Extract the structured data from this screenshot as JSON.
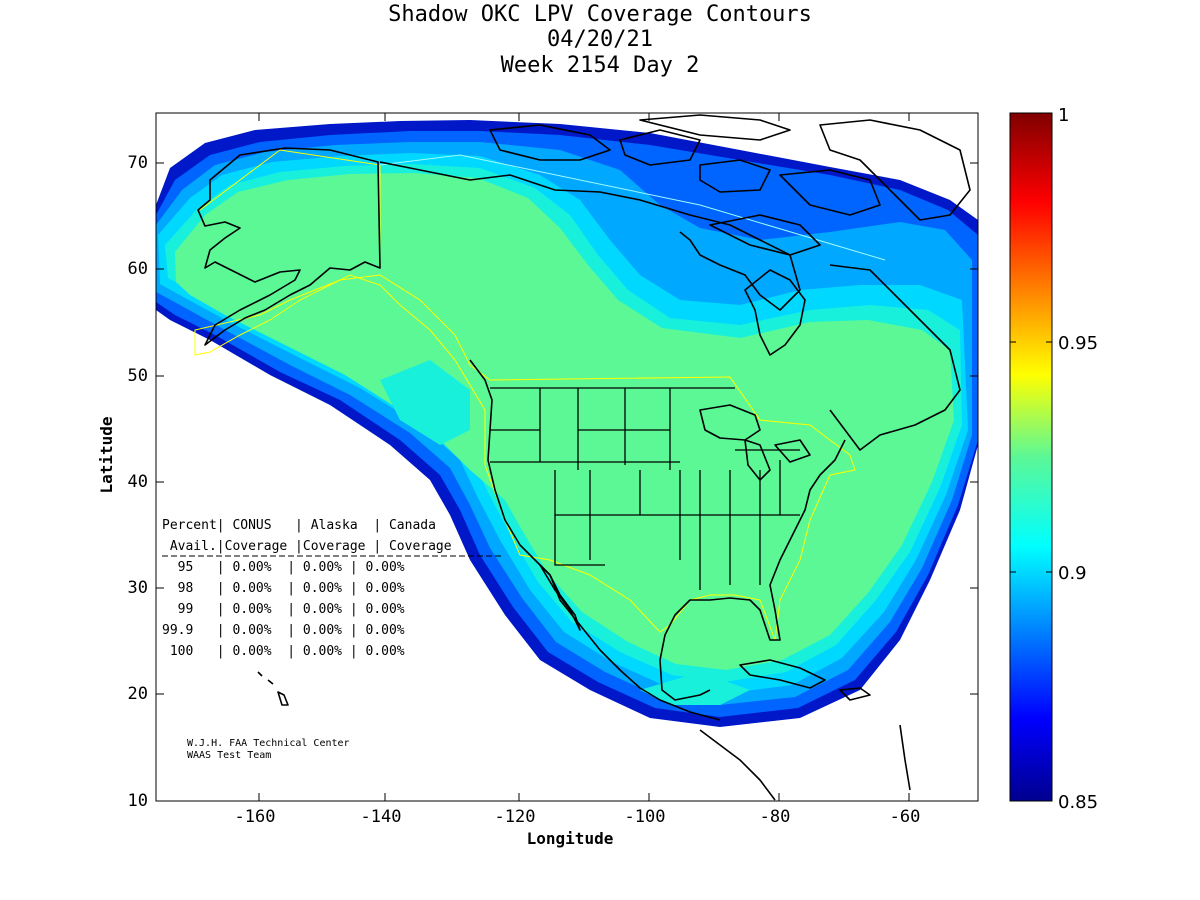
{
  "title": {
    "line1": "Shadow OKC LPV Coverage Contours",
    "line2": "04/20/21",
    "line3": "Week 2154 Day 2"
  },
  "axes": {
    "xlabel": "Longitude",
    "ylabel": "Latitude",
    "x_ticks": [
      "-160",
      "-140",
      "-120",
      "-100",
      "-80",
      "-60"
    ],
    "y_ticks": [
      "10",
      "20",
      "30",
      "40",
      "50",
      "60",
      "70"
    ],
    "xlim": [
      -175,
      -50
    ],
    "ylim": [
      10,
      75
    ]
  },
  "colorbar": {
    "ticks": [
      "1",
      "0.95",
      "0.9",
      "0.85"
    ],
    "range": [
      0.85,
      1.0
    ],
    "colormap": "jet"
  },
  "table": {
    "header1": "Percent| CONUS   | Alaska  | Canada",
    "header2": " Avail.|Coverage |Coverage | Coverage",
    "rows": [
      "  95   | 0.00%  | 0.00% | 0.00%",
      "  98   | 0.00%  | 0.00% | 0.00%",
      "  99   | 0.00%  | 0.00% | 0.00%",
      "99.9   | 0.00%  | 0.00% | 0.00%",
      " 100   | 0.00%  | 0.00% | 0.00%"
    ]
  },
  "credit": {
    "line1": "W.J.H. FAA Technical Center",
    "line2": "WAAS Test Team"
  },
  "colors": {
    "coverage_core": "#5cf896",
    "coverage_teal": "#18f0dc",
    "coverage_cyan": "#00d8ff",
    "coverage_sky": "#00a8ff",
    "coverage_blue": "#0064ff",
    "coverage_navy": "#0018c8",
    "service_boundary": "#ffff00"
  }
}
